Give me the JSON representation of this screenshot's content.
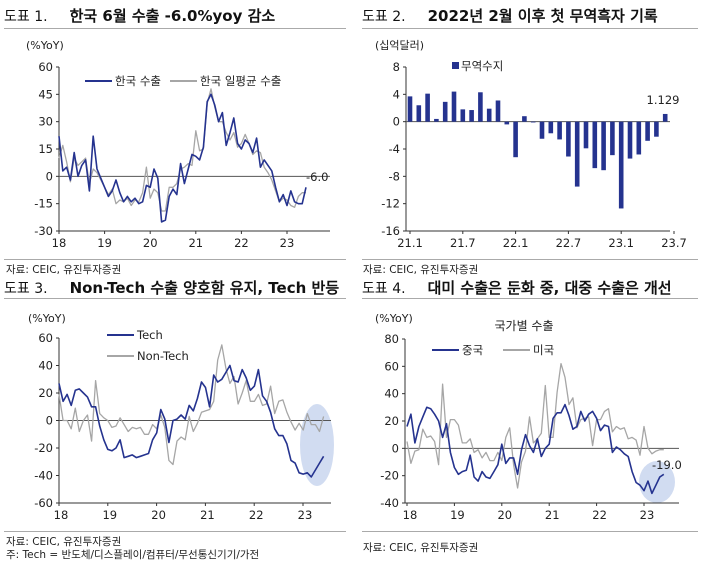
{
  "panels": [
    {
      "prefix": "도표 1.",
      "title": "한국 6월 수출 -6.0%yoy 감소",
      "unit": "(%YoY)",
      "source": "자료: CEIC, 유진투자증권"
    },
    {
      "prefix": "도표 2.",
      "title": "2022년 2월 이후 첫 무역흑자 기록",
      "unit": "(십억달러)",
      "source": "자료: CEIC, 유진투자증권"
    },
    {
      "prefix": "도표 3.",
      "title": "Non-Tech 수출 양호함 유지, Tech 반등",
      "unit": "(%YoY)",
      "source": "자료: CEIC, 유진투자증권",
      "note": "주: Tech = 반도체/디스플레이/컴퓨터/무선통신기기/가전"
    },
    {
      "prefix": "도표 4.",
      "title": "대미 수출은 둔화 중, 대중 수출은 개선",
      "unit": "(%YoY)",
      "source": "자료: CEIC, 유진투자증권"
    }
  ],
  "colors": {
    "blue": "#25338f",
    "gray": "#a6a6a6",
    "highlight": "#c9d6ee"
  },
  "chart_data": [
    {
      "type": "line",
      "title": "한국 6월 수출 -6.0%yoy 감소",
      "ylabel": "(%YoY)",
      "ylim": [
        -30,
        60
      ],
      "yticks": [
        "60",
        "45",
        "30",
        "15",
        "0",
        "-15",
        "-30"
      ],
      "xticks": [
        "18",
        "19",
        "20",
        "21",
        "22",
        "23"
      ],
      "x_start": "2018-01",
      "frequency": "monthly",
      "annotation": "-6.0",
      "series": [
        {
          "name": "한국 수출",
          "values": [
            22,
            3,
            5,
            -2,
            13,
            0,
            6,
            9,
            -8,
            22,
            4,
            -1,
            -6,
            -11,
            -8,
            -2,
            -9,
            -14,
            -11,
            -14,
            -12,
            -15,
            -14,
            -5,
            -6,
            4,
            -1,
            -25,
            -24,
            -11,
            -7,
            -10,
            7,
            -4,
            4,
            12,
            11,
            9,
            16,
            41,
            45,
            39,
            30,
            35,
            17,
            24,
            32,
            18,
            15,
            20,
            18,
            13,
            21,
            5,
            9,
            6,
            3,
            -6,
            -14,
            -10,
            -16,
            -8,
            -14,
            -15,
            -15,
            -6
          ]
        },
        {
          "name": "한국 일평균 수출",
          "values": [
            10,
            17,
            8,
            -3,
            10,
            6,
            8,
            10,
            -4,
            4,
            2,
            -2,
            -6,
            -10,
            -7,
            -15,
            -13,
            -14,
            -12,
            -16,
            -13,
            -14,
            -9,
            5,
            -12,
            -7,
            -9,
            -19,
            -19,
            -6,
            -6,
            -4,
            4,
            5,
            7,
            6,
            25,
            14,
            15,
            40,
            48,
            38,
            30,
            30,
            24,
            20,
            24,
            16,
            18,
            23,
            18,
            12,
            14,
            13,
            5,
            2,
            -2,
            -8,
            -14,
            -12,
            -13,
            -16,
            -17,
            -11,
            -9,
            -9
          ]
        }
      ]
    },
    {
      "type": "bar",
      "title": "2022년 2월 이후 첫 무역흑자 기록",
      "ylabel": "(십억달러)",
      "ylim": [
        -16,
        8
      ],
      "yticks": [
        "8",
        "4",
        "0",
        "-4",
        "-8",
        "-12",
        "-16"
      ],
      "xticks": [
        "21.1",
        "21.7",
        "22.1",
        "22.7",
        "23.1",
        "23.7"
      ],
      "x_start": "2021-01",
      "frequency": "monthly",
      "annotation": "1.129",
      "series": [
        {
          "name": "무역수지",
          "values": [
            3.7,
            2.4,
            4.1,
            0.4,
            2.9,
            4.4,
            1.8,
            1.7,
            4.3,
            1.9,
            3.1,
            -0.4,
            -5.2,
            0.8,
            -0.1,
            -2.5,
            -1.7,
            -2.6,
            -5.1,
            -9.5,
            -3.9,
            -6.8,
            -7.1,
            -4.9,
            -12.7,
            -5.4,
            -4.8,
            -2.8,
            -2.2,
            1.129
          ]
        }
      ]
    },
    {
      "type": "line",
      "title": "Non-Tech 수출 양호함 유지, Tech 반등",
      "ylabel": "(%YoY)",
      "ylim": [
        -60,
        60
      ],
      "yticks": [
        "60",
        "40",
        "20",
        "0",
        "-20",
        "-40",
        "-60"
      ],
      "xticks": [
        "18",
        "19",
        "20",
        "21",
        "22",
        "23"
      ],
      "x_start": "2018-01",
      "frequency": "monthly",
      "series": [
        {
          "name": "Tech",
          "values": [
            27,
            14,
            19,
            11,
            22,
            23,
            20,
            17,
            10,
            10,
            -4,
            -14,
            -21,
            -22,
            -20,
            -14,
            -27,
            -26,
            -25,
            -27,
            -26,
            -25,
            -24,
            -14,
            -9,
            8,
            1,
            -16,
            0,
            1,
            4,
            1,
            11,
            7,
            16,
            28,
            24,
            10,
            33,
            28,
            30,
            35,
            40,
            29,
            28,
            37,
            31,
            22,
            25,
            37,
            18,
            14,
            6,
            -6,
            -11,
            -11,
            -17,
            -29,
            -31,
            -38,
            -39,
            -38,
            -41,
            -36,
            -31,
            -26
          ]
        },
        {
          "name": "Non-Tech",
          "values": [
            19,
            0,
            0,
            -6,
            9,
            -8,
            0,
            4,
            -15,
            29,
            5,
            2,
            0,
            -5,
            -4,
            2,
            -3,
            -8,
            -5,
            -6,
            -5,
            -10,
            -10,
            -3,
            -6,
            4,
            -5,
            -29,
            -32,
            -15,
            -12,
            -14,
            3,
            -8,
            -2,
            6,
            7,
            8,
            14,
            44,
            55,
            38,
            27,
            32,
            12,
            20,
            29,
            14,
            14,
            19,
            11,
            12,
            25,
            5,
            14,
            15,
            6,
            -1,
            -7,
            -2,
            -7,
            5,
            -3,
            -3,
            -8,
            3
          ]
        }
      ]
    },
    {
      "type": "line",
      "title": "대미 수출은 둔화 중, 대중 수출은 개선",
      "subtitle": "국가별 수출",
      "ylabel": "(%YoY)",
      "ylim": [
        -40,
        80
      ],
      "yticks": [
        "80",
        "60",
        "40",
        "20",
        "0",
        "-20",
        "-40"
      ],
      "xticks": [
        "18",
        "19",
        "20",
        "21",
        "22",
        "23"
      ],
      "x_start": "2018-01",
      "frequency": "monthly",
      "annotation": "-19.0",
      "series": [
        {
          "name": "중국",
          "values": [
            16,
            25,
            4,
            16,
            23,
            30,
            29,
            25,
            20,
            8,
            18,
            -3,
            -14,
            -19,
            -17,
            -16,
            -5,
            -21,
            -24,
            -17,
            -21,
            -22,
            -17,
            -12,
            3,
            -11,
            -7,
            -7,
            -19,
            -1,
            10,
            2,
            -3,
            7,
            -6,
            0,
            3,
            22,
            26,
            26,
            32,
            24,
            14,
            16,
            27,
            20,
            25,
            27,
            22,
            13,
            17,
            16,
            -3,
            1,
            -1,
            -4,
            -6,
            -17,
            -25,
            -27,
            -31,
            -24,
            -33,
            -27,
            -21,
            -19
          ]
        },
        {
          "name": "미국",
          "values": [
            5,
            -11,
            -2,
            -1,
            14,
            8,
            9,
            5,
            -12,
            47,
            8,
            21,
            21,
            17,
            4,
            4,
            7,
            -3,
            -1,
            -7,
            -3,
            -9,
            -9,
            -3,
            -9,
            8,
            15,
            -12,
            -29,
            -10,
            -2,
            23,
            4,
            7,
            11,
            46,
            8,
            8,
            41,
            62,
            52,
            32,
            37,
            15,
            21,
            22,
            23,
            2,
            21,
            21,
            27,
            29,
            12,
            16,
            14,
            15,
            7,
            8,
            6,
            -5,
            16,
            0,
            -4,
            -2,
            -1,
            -1
          ]
        }
      ]
    }
  ]
}
